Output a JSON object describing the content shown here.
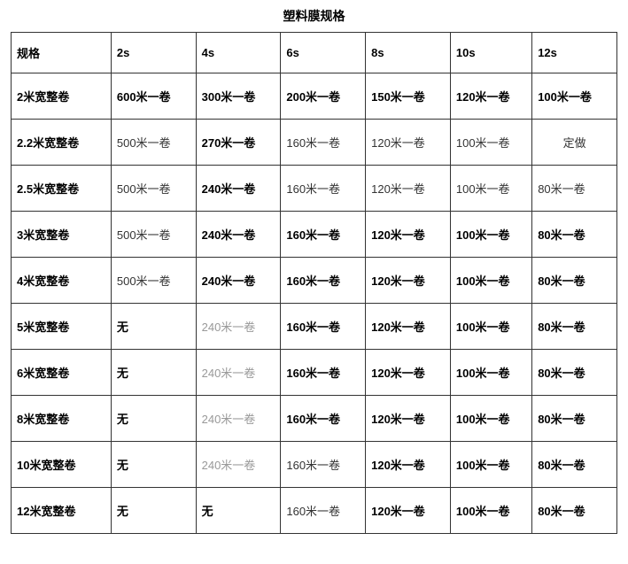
{
  "title": "塑料膜规格",
  "table": {
    "columns": [
      "规格",
      "2s",
      "4s",
      "6s",
      "8s",
      "10s",
      "12s"
    ],
    "rows": [
      {
        "label": "2米宽整卷",
        "cells": [
          {
            "text": "600米一卷",
            "style": "bold"
          },
          {
            "text": "300米一卷",
            "style": "bold"
          },
          {
            "text": "200米一卷",
            "style": "bold"
          },
          {
            "text": "150米一卷",
            "style": "bold"
          },
          {
            "text": "120米一卷",
            "style": "bold"
          },
          {
            "text": "100米一卷",
            "style": "bold"
          }
        ]
      },
      {
        "label": "2.2米宽整卷",
        "cells": [
          {
            "text": "500米一卷",
            "style": "normal"
          },
          {
            "text": "270米一卷",
            "style": "bold"
          },
          {
            "text": "160米一卷",
            "style": "normal"
          },
          {
            "text": "120米一卷",
            "style": "normal"
          },
          {
            "text": "100米一卷",
            "style": "normal"
          },
          {
            "text": "定做",
            "style": "normal",
            "align": "center"
          }
        ]
      },
      {
        "label": "2.5米宽整卷",
        "cells": [
          {
            "text": "500米一卷",
            "style": "normal"
          },
          {
            "text": "240米一卷",
            "style": "bold"
          },
          {
            "text": "160米一卷",
            "style": "normal"
          },
          {
            "text": "120米一卷",
            "style": "normal"
          },
          {
            "text": "100米一卷",
            "style": "normal"
          },
          {
            "text": "80米一卷",
            "style": "normal"
          }
        ]
      },
      {
        "label": "3米宽整卷",
        "cells": [
          {
            "text": "500米一卷",
            "style": "normal"
          },
          {
            "text": "240米一卷",
            "style": "bold"
          },
          {
            "text": "160米一卷",
            "style": "bold"
          },
          {
            "text": "120米一卷",
            "style": "bold"
          },
          {
            "text": "100米一卷",
            "style": "bold"
          },
          {
            "text": "80米一卷",
            "style": "bold"
          }
        ]
      },
      {
        "label": "4米宽整卷",
        "cells": [
          {
            "text": "500米一卷",
            "style": "normal"
          },
          {
            "text": "240米一卷",
            "style": "bold"
          },
          {
            "text": "160米一卷",
            "style": "bold"
          },
          {
            "text": "120米一卷",
            "style": "bold"
          },
          {
            "text": "100米一卷",
            "style": "bold"
          },
          {
            "text": "80米一卷",
            "style": "bold"
          }
        ]
      },
      {
        "label": "5米宽整卷",
        "cells": [
          {
            "text": "无",
            "style": "bold"
          },
          {
            "text": "240米一卷",
            "style": "grey"
          },
          {
            "text": "160米一卷",
            "style": "bold"
          },
          {
            "text": "120米一卷",
            "style": "bold"
          },
          {
            "text": "100米一卷",
            "style": "bold"
          },
          {
            "text": "80米一卷",
            "style": "bold"
          }
        ]
      },
      {
        "label": "6米宽整卷",
        "cells": [
          {
            "text": "无",
            "style": "bold"
          },
          {
            "text": "240米一卷",
            "style": "grey"
          },
          {
            "text": "160米一卷",
            "style": "bold"
          },
          {
            "text": "120米一卷",
            "style": "bold"
          },
          {
            "text": "100米一卷",
            "style": "bold"
          },
          {
            "text": "80米一卷",
            "style": "bold"
          }
        ]
      },
      {
        "label": "8米宽整卷",
        "cells": [
          {
            "text": "无",
            "style": "bold"
          },
          {
            "text": "240米一卷",
            "style": "grey"
          },
          {
            "text": "160米一卷",
            "style": "bold"
          },
          {
            "text": "120米一卷",
            "style": "bold"
          },
          {
            "text": "100米一卷",
            "style": "bold"
          },
          {
            "text": "80米一卷",
            "style": "bold"
          }
        ]
      },
      {
        "label": "10米宽整卷",
        "cells": [
          {
            "text": "无",
            "style": "bold"
          },
          {
            "text": "240米一卷",
            "style": "grey"
          },
          {
            "text": "160米一卷",
            "style": "normal"
          },
          {
            "text": "120米一卷",
            "style": "bold"
          },
          {
            "text": "100米一卷",
            "style": "bold"
          },
          {
            "text": "80米一卷",
            "style": "bold"
          }
        ]
      },
      {
        "label": "12米宽整卷",
        "cells": [
          {
            "text": "无",
            "style": "bold"
          },
          {
            "text": "无",
            "style": "bold"
          },
          {
            "text": "160米一卷",
            "style": "normal"
          },
          {
            "text": "120米一卷",
            "style": "bold"
          },
          {
            "text": "100米一卷",
            "style": "bold"
          },
          {
            "text": "80米一卷",
            "style": "bold"
          }
        ]
      }
    ]
  },
  "styles": {
    "background_color": "#ffffff",
    "border_color": "#333333",
    "text_color_bold": "#000000",
    "text_color_normal": "#333333",
    "text_color_grey": "#999999",
    "font_size_title": 14,
    "font_size_cell": 13
  }
}
